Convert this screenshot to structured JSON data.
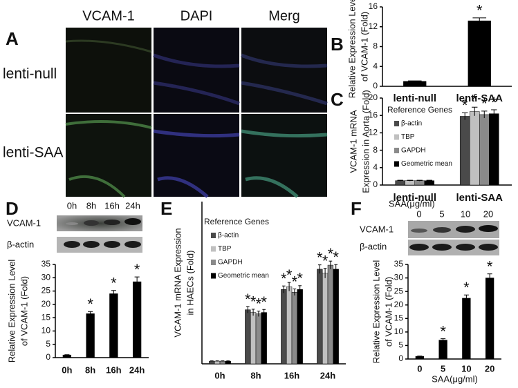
{
  "figure": {
    "panel_labels": [
      "A",
      "B",
      "C",
      "D",
      "E",
      "F"
    ],
    "panel_a": {
      "columns": [
        "VCAM-1",
        "DAPI",
        "Merg"
      ],
      "rows": [
        "lenti-null",
        "lenti-SAA"
      ]
    },
    "blot_d": {
      "lanes": [
        "0h",
        "8h",
        "16h",
        "24h"
      ],
      "rows": [
        "VCAM-1",
        "β-actin"
      ]
    },
    "blot_f": {
      "title": "SAA(μg/ml)",
      "lanes": [
        "0",
        "5",
        "10",
        "20"
      ],
      "rows": [
        "VCAM-1",
        "β-actin"
      ]
    }
  },
  "chart_data": [
    {
      "type": "bar",
      "ylabel": [
        "Relative Expression Level",
        "of VCAM-1 (Fold)"
      ],
      "categories": [
        "lenti-null",
        "lenti-SAA"
      ],
      "values": [
        1,
        13.2
      ],
      "errors": [
        0.1,
        0.6
      ],
      "markers": [
        null,
        "*"
      ],
      "color": "#000000",
      "ylim": [
        0,
        16
      ],
      "yticks": [
        0,
        4,
        8,
        12,
        16
      ]
    },
    {
      "type": "bar",
      "ylabel": [
        "VCAM-1 mRNA",
        "Expression in Aorta (Fold)"
      ],
      "legend_title": "Reference Genes",
      "categories": [
        "lenti-null",
        "lenti-SAA"
      ],
      "series": [
        {
          "name": "β-actin",
          "color": "#4a4a4a",
          "values": [
            1,
            15.8
          ],
          "errors": [
            0.1,
            0.8
          ],
          "markers": [
            null,
            "*"
          ]
        },
        {
          "name": "TBP",
          "color": "#c0c0c0",
          "values": [
            1,
            16.9
          ],
          "errors": [
            0.1,
            1.0
          ],
          "markers": [
            null,
            "*"
          ]
        },
        {
          "name": "GAPDH",
          "color": "#8a8a8a",
          "values": [
            1,
            16.2
          ],
          "errors": [
            0.1,
            0.8
          ],
          "markers": [
            null,
            "*"
          ]
        },
        {
          "name": "Geometric mean",
          "color": "#000000",
          "values": [
            1,
            16.4
          ],
          "errors": [
            0.1,
            0.9
          ],
          "markers": [
            null,
            "*"
          ]
        }
      ],
      "ylim": [
        0,
        20
      ],
      "yticks": [
        0,
        4,
        8,
        12,
        16,
        20
      ]
    },
    {
      "type": "bar",
      "ylabel": [
        "Relative Expression Level",
        "of VCAM-1 (Fold)"
      ],
      "categories": [
        "0h",
        "8h",
        "16h",
        "24h"
      ],
      "values": [
        1,
        16.5,
        24,
        28.5
      ],
      "errors": [
        0.1,
        0.8,
        1.2,
        1.8
      ],
      "markers": [
        null,
        "*",
        "*",
        "*"
      ],
      "color": "#000000",
      "ylim": [
        0,
        35
      ],
      "yticks": [
        0,
        5,
        10,
        15,
        20,
        25,
        30,
        35
      ]
    },
    {
      "type": "bar",
      "ylabel": [
        "VCAM-1 mRNA Expression",
        "in HAECs (Fold)"
      ],
      "legend_title": "Reference Genes",
      "categories": [
        "0h",
        "8h",
        "16h",
        "24h"
      ],
      "series": [
        {
          "name": "β-actin",
          "color": "#4a4a4a",
          "values": [
            1,
            20,
            27.5,
            35
          ],
          "errors": [
            0.1,
            1.2,
            1.3,
            1.6
          ],
          "markers": [
            null,
            "*",
            "*",
            "*"
          ]
        },
        {
          "name": "TBP",
          "color": "#c0c0c0",
          "values": [
            1,
            19,
            28.5,
            33.5
          ],
          "errors": [
            0.1,
            1.2,
            1.6,
            1.8
          ],
          "markers": [
            null,
            "*",
            "*",
            "*"
          ]
        },
        {
          "name": "GAPDH",
          "color": "#8a8a8a",
          "values": [
            1,
            18.5,
            26.5,
            36.5
          ],
          "errors": [
            0.1,
            1.0,
            1.2,
            1.5
          ],
          "markers": [
            null,
            "*",
            "*",
            "*"
          ]
        },
        {
          "name": "Geometric mean",
          "color": "#000000",
          "values": [
            1,
            19,
            27.5,
            35
          ],
          "errors": [
            0.1,
            1.1,
            1.4,
            1.7
          ],
          "markers": [
            null,
            "*",
            "*",
            "*"
          ]
        }
      ],
      "ylim": [
        0,
        60
      ]
    },
    {
      "type": "bar",
      "ylabel": [
        "Relative Expression Level",
        "of VCAM-1 (Fold)"
      ],
      "xlabel": "SAA(μg/ml)",
      "categories": [
        "0",
        "5",
        "10",
        "20"
      ],
      "values": [
        1,
        7,
        22.5,
        30
      ],
      "errors": [
        0.1,
        0.5,
        1.2,
        1.5
      ],
      "markers": [
        null,
        "*",
        "*",
        "*"
      ],
      "color": "#000000",
      "ylim": [
        0,
        35
      ],
      "yticks": [
        0,
        5,
        10,
        15,
        20,
        25,
        30,
        35
      ]
    }
  ]
}
